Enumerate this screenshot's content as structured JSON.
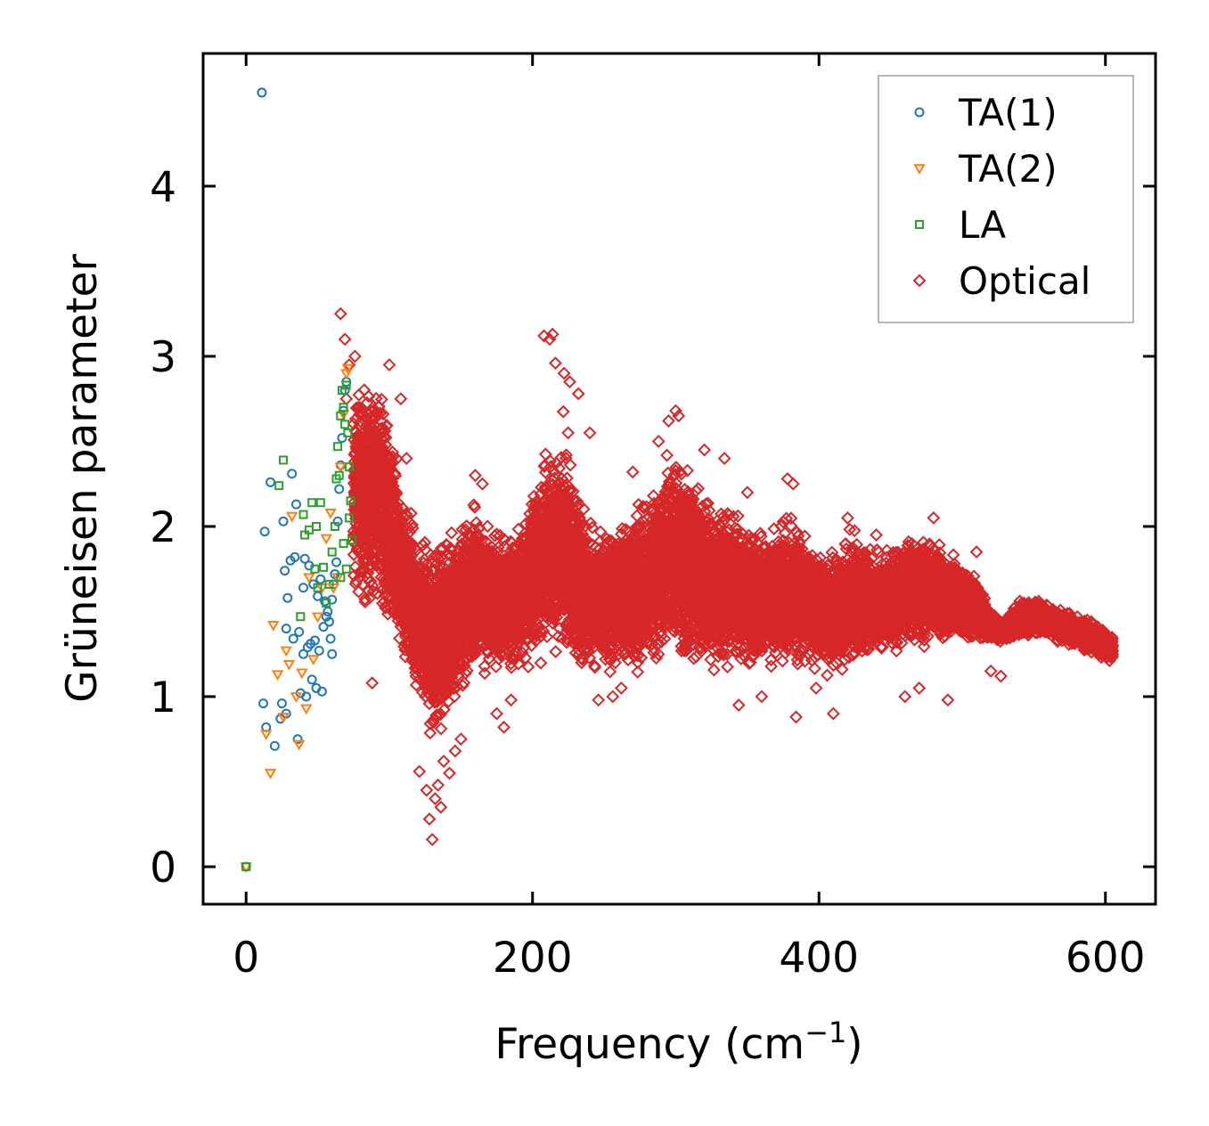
{
  "chart_data": {
    "type": "scatter",
    "title": "",
    "xlabel": "Frequency (cm",
    "xlabel_sup": "−1",
    "xlabel_close": ")",
    "ylabel": "Grüneisen parameter",
    "xlim": [
      -30,
      635
    ],
    "ylim": [
      -0.22,
      4.78
    ],
    "xticks": [
      0,
      200,
      400,
      600
    ],
    "yticks": [
      0,
      1,
      2,
      3,
      4
    ],
    "xtick_labels": [
      "0",
      "200",
      "400",
      "600"
    ],
    "ytick_labels": [
      "0",
      "1",
      "2",
      "3",
      "4"
    ],
    "legend_position": "top-right",
    "grid": false,
    "series": [
      {
        "name": "TA(1)",
        "marker": "circle",
        "color": "#1f77b4",
        "points": [
          [
            0,
            0
          ],
          [
            11,
            4.55
          ],
          [
            13,
            1.97
          ],
          [
            12,
            0.96
          ],
          [
            14,
            0.82
          ],
          [
            17,
            2.26
          ],
          [
            20,
            0.71
          ],
          [
            24,
            0.87
          ],
          [
            25,
            0.96
          ],
          [
            26,
            2.03
          ],
          [
            27,
            1.74
          ],
          [
            28,
            0.9
          ],
          [
            28,
            1.4
          ],
          [
            29,
            1.58
          ],
          [
            31,
            1.8
          ],
          [
            32,
            2.31
          ],
          [
            33,
            1.34
          ],
          [
            34,
            1.82
          ],
          [
            35,
            2.13
          ],
          [
            36,
            0.75
          ],
          [
            37,
            1.38
          ],
          [
            38,
            1.02
          ],
          [
            40,
            1.25
          ],
          [
            40,
            1.64
          ],
          [
            41,
            1.81
          ],
          [
            42,
            1.0
          ],
          [
            43,
            1.29
          ],
          [
            44,
            1.77
          ],
          [
            45,
            1.31
          ],
          [
            46,
            1.1
          ],
          [
            47,
            1.66
          ],
          [
            48,
            1.33
          ],
          [
            49,
            1.05
          ],
          [
            50,
            1.59
          ],
          [
            51,
            1.27
          ],
          [
            52,
            1.69
          ],
          [
            53,
            1.03
          ],
          [
            54,
            1.41
          ],
          [
            55,
            1.56
          ],
          [
            56,
            1.47
          ],
          [
            57,
            1.5
          ],
          [
            58,
            1.44
          ],
          [
            59,
            1.34
          ],
          [
            60,
            1.25
          ],
          [
            60,
            1.57
          ],
          [
            61,
            1.66
          ],
          [
            62,
            1.72
          ],
          [
            63,
            1.79
          ],
          [
            64,
            2.03
          ],
          [
            65,
            2.22
          ],
          [
            66,
            2.36
          ],
          [
            67,
            2.52
          ],
          [
            68,
            2.68
          ],
          [
            69,
            2.8
          ],
          [
            70,
            2.85
          ]
        ]
      },
      {
        "name": "TA(2)",
        "marker": "triangle-down",
        "color": "#ff7f0e",
        "points": [
          [
            0,
            0
          ],
          [
            14,
            0.78
          ],
          [
            17,
            0.55
          ],
          [
            19,
            1.42
          ],
          [
            22,
            1.13
          ],
          [
            26,
            0.88
          ],
          [
            28,
            1.27
          ],
          [
            30,
            1.19
          ],
          [
            32,
            2.06
          ],
          [
            35,
            1.0
          ],
          [
            37,
            0.72
          ],
          [
            39,
            1.14
          ],
          [
            42,
            0.93
          ],
          [
            44,
            1.7
          ],
          [
            47,
            1.22
          ],
          [
            50,
            1.47
          ],
          [
            53,
            1.64
          ],
          [
            56,
            1.93
          ],
          [
            59,
            2.08
          ],
          [
            61,
            1.64
          ],
          [
            64,
            1.7
          ],
          [
            66,
            2.35
          ],
          [
            68,
            2.66
          ],
          [
            70,
            2.9
          ],
          [
            71,
            2.93
          ]
        ]
      },
      {
        "name": "LA",
        "marker": "square",
        "color": "#2ca02c",
        "points": [
          [
            0,
            0
          ],
          [
            23,
            2.24
          ],
          [
            26,
            2.39
          ],
          [
            38,
            1.47
          ],
          [
            40,
            2.07
          ],
          [
            41,
            1.95
          ],
          [
            44,
            1.98
          ],
          [
            46,
            2.14
          ],
          [
            48,
            1.75
          ],
          [
            49,
            2.0
          ],
          [
            50,
            1.64
          ],
          [
            52,
            2.14
          ],
          [
            54,
            1.76
          ],
          [
            56,
            1.55
          ],
          [
            58,
            1.66
          ],
          [
            60,
            1.85
          ],
          [
            62,
            2.0
          ],
          [
            63,
            2.28
          ],
          [
            64,
            2.47
          ],
          [
            65,
            2.3
          ],
          [
            66,
            2.65
          ],
          [
            67,
            2.8
          ],
          [
            68,
            2.7
          ],
          [
            69,
            2.6
          ],
          [
            70,
            2.83
          ],
          [
            71,
            2.55
          ],
          [
            72,
            2.35
          ],
          [
            73,
            2.15
          ],
          [
            74,
            1.92
          ],
          [
            70,
            1.75
          ],
          [
            72,
            2.05
          ],
          [
            66,
            1.7
          ],
          [
            68,
            1.9
          ]
        ]
      },
      {
        "name": "Optical",
        "marker": "diamond",
        "color": "#d62728",
        "band": [
          [
            75,
            1.52,
            2.9
          ],
          [
            90,
            1.46,
            2.93
          ],
          [
            100,
            1.3,
            2.68
          ],
          [
            110,
            1.12,
            2.25
          ],
          [
            120,
            0.9,
            2.04
          ],
          [
            130,
            0.7,
            1.96
          ],
          [
            140,
            0.8,
            1.98
          ],
          [
            150,
            0.96,
            2.08
          ],
          [
            160,
            1.06,
            2.22
          ],
          [
            170,
            1.1,
            2.05
          ],
          [
            180,
            1.12,
            1.96
          ],
          [
            190,
            1.14,
            2.02
          ],
          [
            200,
            1.18,
            2.22
          ],
          [
            210,
            1.18,
            2.5
          ],
          [
            220,
            1.16,
            2.72
          ],
          [
            230,
            1.12,
            2.35
          ],
          [
            240,
            1.1,
            2.05
          ],
          [
            250,
            1.12,
            1.98
          ],
          [
            260,
            1.12,
            2.04
          ],
          [
            270,
            1.14,
            2.12
          ],
          [
            280,
            1.12,
            2.24
          ],
          [
            290,
            1.14,
            2.4
          ],
          [
            300,
            1.16,
            2.55
          ],
          [
            310,
            1.14,
            2.38
          ],
          [
            320,
            1.12,
            2.24
          ],
          [
            330,
            1.12,
            2.2
          ],
          [
            340,
            1.14,
            2.14
          ],
          [
            350,
            1.12,
            2.04
          ],
          [
            360,
            1.12,
            2.02
          ],
          [
            370,
            1.14,
            2.06
          ],
          [
            380,
            1.14,
            2.1
          ],
          [
            390,
            1.16,
            1.98
          ],
          [
            400,
            1.16,
            1.86
          ],
          [
            410,
            1.08,
            1.88
          ],
          [
            420,
            1.12,
            1.98
          ],
          [
            430,
            1.18,
            1.96
          ],
          [
            440,
            1.24,
            1.88
          ],
          [
            450,
            1.24,
            1.88
          ],
          [
            460,
            1.26,
            1.96
          ],
          [
            470,
            1.28,
            1.98
          ],
          [
            480,
            1.3,
            1.94
          ],
          [
            490,
            1.3,
            1.88
          ],
          [
            500,
            1.3,
            1.8
          ],
          [
            510,
            1.32,
            1.72
          ],
          [
            520,
            1.32,
            1.5
          ],
          [
            530,
            1.32,
            1.46
          ],
          [
            540,
            1.34,
            1.58
          ],
          [
            550,
            1.36,
            1.58
          ],
          [
            560,
            1.34,
            1.55
          ],
          [
            570,
            1.3,
            1.52
          ],
          [
            580,
            1.28,
            1.48
          ],
          [
            590,
            1.25,
            1.45
          ],
          [
            600,
            1.22,
            1.4
          ],
          [
            605,
            1.2,
            1.35
          ]
        ],
        "outliers": [
          [
            66,
            3.25
          ],
          [
            69,
            3.1
          ],
          [
            70,
            2.75
          ],
          [
            72,
            2.95
          ],
          [
            76,
            3.0
          ],
          [
            88,
            1.08
          ],
          [
            100,
            2.95
          ],
          [
            108,
            2.75
          ],
          [
            112,
            2.4
          ],
          [
            118,
            1.3
          ],
          [
            121,
            0.56
          ],
          [
            126,
            0.45
          ],
          [
            128,
            0.28
          ],
          [
            130,
            0.16
          ],
          [
            132,
            0.4
          ],
          [
            134,
            0.48
          ],
          [
            136,
            0.35
          ],
          [
            138,
            0.62
          ],
          [
            142,
            0.55
          ],
          [
            146,
            0.68
          ],
          [
            150,
            0.75
          ],
          [
            160,
            2.3
          ],
          [
            165,
            2.25
          ],
          [
            175,
            0.9
          ],
          [
            180,
            0.82
          ],
          [
            185,
            0.98
          ],
          [
            208,
            3.12
          ],
          [
            212,
            3.1
          ],
          [
            214,
            3.13
          ],
          [
            216,
            2.96
          ],
          [
            222,
            2.9
          ],
          [
            226,
            2.85
          ],
          [
            232,
            2.78
          ],
          [
            240,
            2.55
          ],
          [
            246,
            0.98
          ],
          [
            256,
            1.0
          ],
          [
            262,
            1.05
          ],
          [
            270,
            2.32
          ],
          [
            288,
            2.5
          ],
          [
            295,
            2.62
          ],
          [
            300,
            2.68
          ],
          [
            302,
            2.65
          ],
          [
            320,
            2.45
          ],
          [
            334,
            2.4
          ],
          [
            344,
            0.95
          ],
          [
            350,
            2.2
          ],
          [
            360,
            1.0
          ],
          [
            378,
            2.28
          ],
          [
            382,
            2.25
          ],
          [
            384,
            0.88
          ],
          [
            398,
            1.05
          ],
          [
            410,
            0.9
          ],
          [
            420,
            2.05
          ],
          [
            440,
            1.95
          ],
          [
            460,
            1.0
          ],
          [
            470,
            1.05
          ],
          [
            480,
            2.05
          ],
          [
            490,
            0.98
          ],
          [
            510,
            1.85
          ],
          [
            520,
            1.15
          ],
          [
            527,
            1.12
          ]
        ]
      }
    ]
  }
}
